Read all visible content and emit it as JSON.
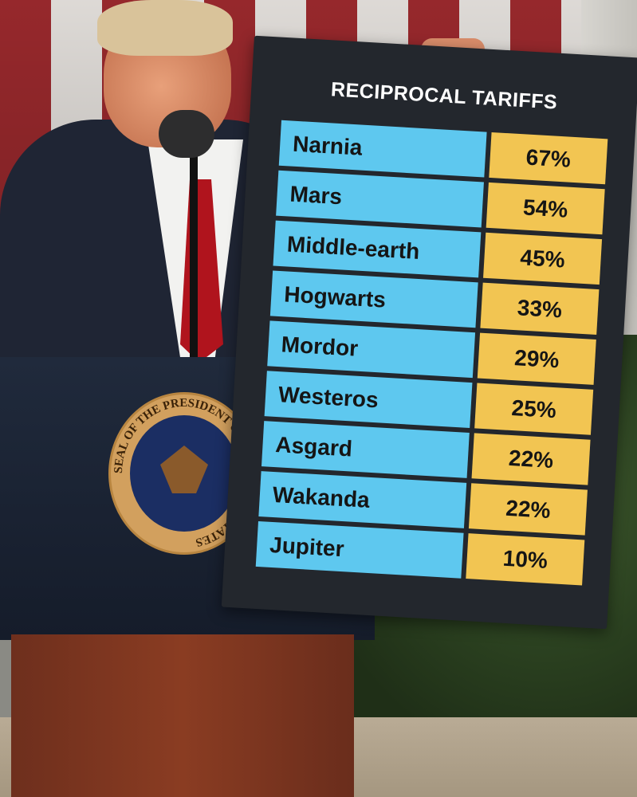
{
  "sign": {
    "title": "RECIPROCAL TARIFFS",
    "rows": [
      {
        "name": "Narnia",
        "rate": "67%"
      },
      {
        "name": "Mars",
        "rate": "54%"
      },
      {
        "name": "Middle-earth",
        "rate": "45%"
      },
      {
        "name": "Hogwarts",
        "rate": "33%"
      },
      {
        "name": "Mordor",
        "rate": "29%"
      },
      {
        "name": "Westeros",
        "rate": "25%"
      },
      {
        "name": "Asgard",
        "rate": "22%"
      },
      {
        "name": "Wakanda",
        "rate": "22%"
      },
      {
        "name": "Jupiter",
        "rate": "10%"
      }
    ],
    "colors": {
      "name_cell": "#5ec8ef",
      "rate_cell": "#f2c552",
      "board": "#23272d"
    }
  },
  "podium": {
    "seal_text": "SEAL OF THE PRESIDENT OF THE UNITED STATES"
  }
}
